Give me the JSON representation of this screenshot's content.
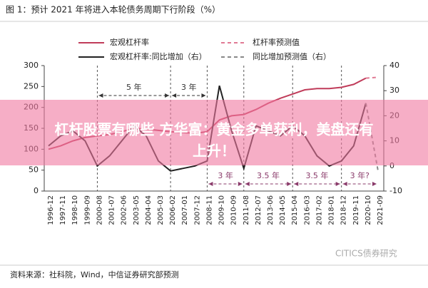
{
  "chart_data": {
    "type": "line",
    "title": "图 1：预计 2021 年将进入本轮债务周期下行阶段（%）",
    "categories": [
      "1996-12",
      "1997-11",
      "1998-10",
      "1999-09",
      "2000-08",
      "2001-07",
      "2002-06",
      "2003-05",
      "2004-04",
      "2005-03",
      "2006-02",
      "2007-01",
      "2007-12",
      "2008-11",
      "2009-10",
      "2010-09",
      "2011-08",
      "2012-07",
      "2013-06",
      "2014-05",
      "2015-04",
      "2016-03",
      "2017-02",
      "2018-01",
      "2018-12",
      "2019-11",
      "2020-10",
      "2021-09"
    ],
    "series": [
      {
        "name": "宏观杠杆率",
        "color": "#c03c5a",
        "dashed": false,
        "values": [
          100,
          108,
          120,
          128,
          132,
          135,
          142,
          150,
          148,
          145,
          142,
          140,
          138,
          142,
          170,
          180,
          183,
          195,
          210,
          222,
          232,
          242,
          245,
          245,
          248,
          255,
          270,
          null
        ]
      },
      {
        "name": "杠杆率预测值",
        "color": "#e07a94",
        "dashed": true,
        "values": [
          null,
          null,
          null,
          null,
          null,
          null,
          null,
          null,
          null,
          null,
          null,
          null,
          null,
          null,
          null,
          null,
          null,
          null,
          null,
          null,
          null,
          null,
          null,
          null,
          null,
          null,
          270,
          272
        ]
      },
      {
        "name": "宏观杠杆率:同比增加（右）",
        "color": "#222222",
        "dashed": false,
        "axis": "y2",
        "values": [
          8,
          12,
          14,
          10,
          0,
          4,
          10,
          16,
          12,
          2,
          -2,
          -1,
          0,
          2,
          32,
          14,
          -1,
          16,
          14,
          12,
          16,
          12,
          4,
          0,
          2,
          8,
          25,
          null
        ]
      },
      {
        "name": "同比增加预测值（右）",
        "color": "#888888",
        "dashed": true,
        "axis": "y2",
        "values": [
          null,
          null,
          null,
          null,
          null,
          null,
          null,
          null,
          null,
          null,
          null,
          null,
          null,
          null,
          null,
          null,
          null,
          null,
          null,
          null,
          null,
          null,
          null,
          null,
          null,
          null,
          25,
          -2
        ]
      }
    ],
    "ylim": [
      0,
      300
    ],
    "yticks": [
      0,
      50,
      100,
      150,
      200,
      250,
      300
    ],
    "y2lim": [
      -10,
      40
    ],
    "y2ticks": [
      -10,
      0,
      10,
      20,
      30,
      40
    ],
    "annotations": [
      "5 年",
      "3 年",
      "3 年",
      "3.5 年",
      "3.5 年",
      "3 年?"
    ],
    "source": "资料来源：社科院，Wind，中信证券研究部预测",
    "watermark": "CITICS债券研究"
  },
  "banner": {
    "text_line1": "杠杆股票有哪些 方华富：黄金多单获利，美盘还有",
    "text_line2": "上升！"
  }
}
